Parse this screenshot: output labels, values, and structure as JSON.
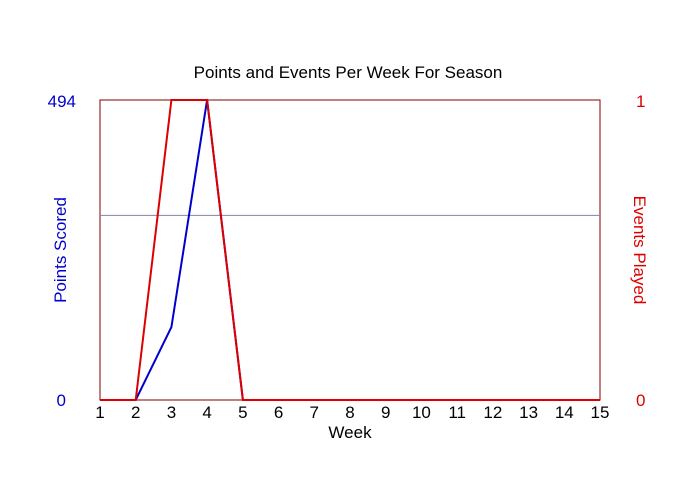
{
  "chart_data": {
    "type": "line",
    "title": "Points and Events Per Week For Season",
    "xlabel": "Week",
    "ylabel_left": "Points Scored",
    "ylabel_right": "Events Played",
    "x": [
      1,
      2,
      3,
      4,
      5,
      6,
      7,
      8,
      9,
      10,
      11,
      12,
      13,
      14,
      15
    ],
    "xlim": [
      1,
      15
    ],
    "ylim_left": [
      0,
      494
    ],
    "ylim_right": [
      0,
      1
    ],
    "left_ticks": [
      "0",
      "494"
    ],
    "right_ticks": [
      "0",
      "1"
    ],
    "reference_line_left_value": 304,
    "series": [
      {
        "axis": "left",
        "color": "#0000cc",
        "values": [
          0,
          0,
          120,
          494,
          0,
          0,
          0,
          0,
          0,
          0,
          0,
          0,
          0,
          0,
          0
        ]
      },
      {
        "axis": "right",
        "color": "#dd0000",
        "values": [
          0,
          0,
          1,
          1,
          0,
          0,
          0,
          0,
          0,
          0,
          0,
          0,
          0,
          0,
          0
        ]
      }
    ],
    "left_axis_color": "#0000cc",
    "right_axis_color": "#dd0000",
    "frame_color": "#800000",
    "reference_line_color": "#8080b0"
  }
}
